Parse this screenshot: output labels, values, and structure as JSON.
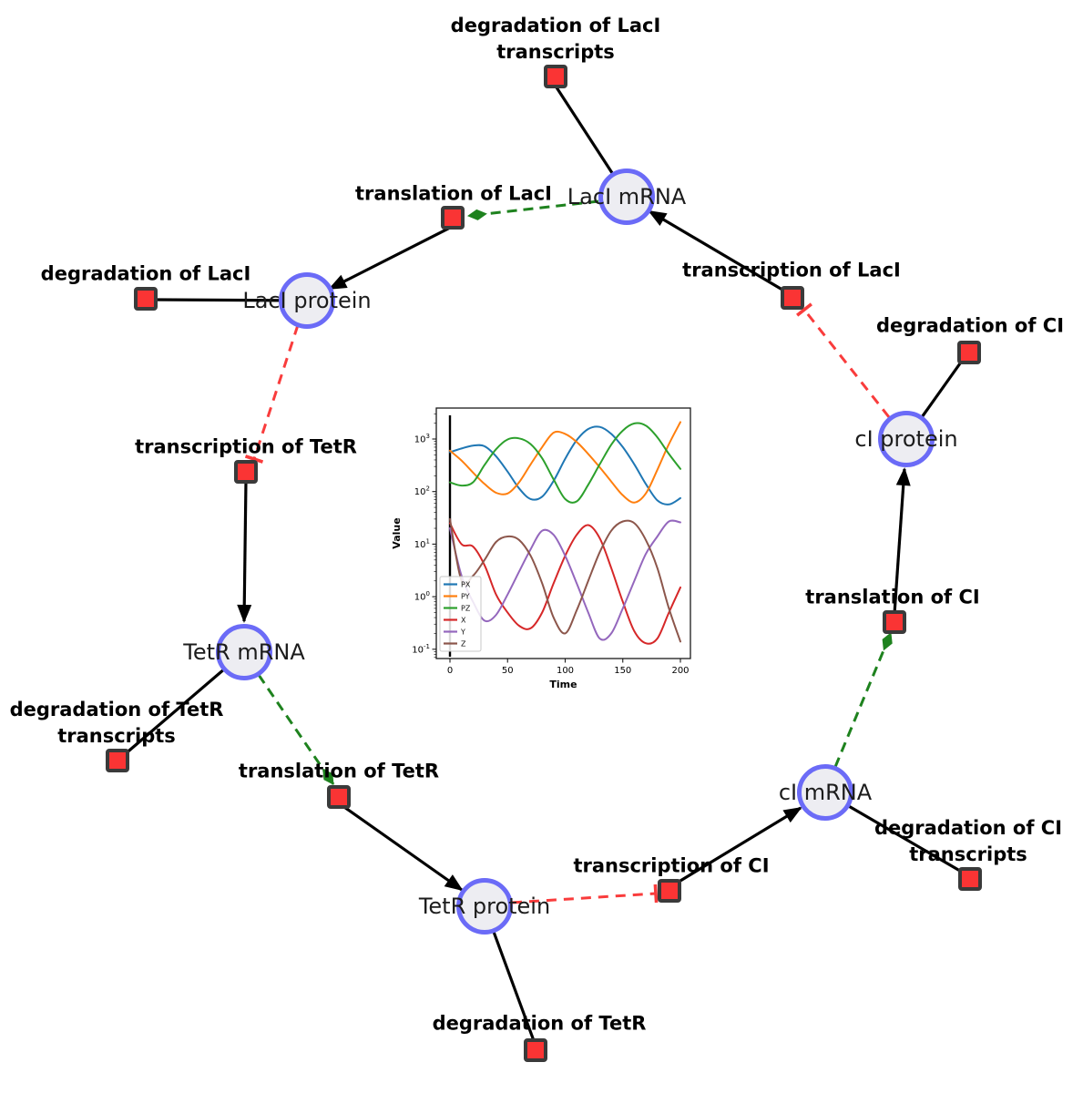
{
  "diagram": {
    "species": {
      "laci_mrna": {
        "label": "LacI mRNA"
      },
      "laci_protein": {
        "label": "LacI protein"
      },
      "tetr_mrna": {
        "label": "TetR mRNA"
      },
      "tetr_protein": {
        "label": "TetR protein"
      },
      "ci_mrna": {
        "label": "cI mRNA"
      },
      "ci_protein": {
        "label": "cI protein"
      }
    },
    "reactions": {
      "deg_laci_tx": {
        "label": "degradation of LacI\ntranscripts"
      },
      "transl_laci": {
        "label": "translation of LacI"
      },
      "tx_laci": {
        "label": "transcription of LacI"
      },
      "deg_laci": {
        "label": "degradation of LacI"
      },
      "deg_ci": {
        "label": "degradation of CI"
      },
      "tx_tetr": {
        "label": "transcription of TetR"
      },
      "deg_tetr_tx": {
        "label": "degradation of TetR\ntranscripts"
      },
      "transl_tetr": {
        "label": "translation of TetR"
      },
      "deg_tetr": {
        "label": "degradation of TetR"
      },
      "tx_ci": {
        "label": "transcription of CI"
      },
      "deg_ci_tx": {
        "label": "degradation of CI\ntranscripts"
      },
      "transl_ci": {
        "label": "translation of CI"
      }
    },
    "colors": {
      "species_fill": "#ededf2",
      "species_stroke": "#6b6bf7",
      "reaction_fill": "#fa3434",
      "reaction_stroke": "#3a3a3a",
      "activation_edge": "#1e821e",
      "inhibition_edge": "#f93c3c",
      "plain_edge": "#000000"
    }
  },
  "chart_data": {
    "type": "line",
    "title": "",
    "xlabel": "Time",
    "ylabel": "Value",
    "x_ticks": [
      0,
      50,
      100,
      150,
      200
    ],
    "y_scale": "log",
    "y_tick_exponents": [
      -1,
      0,
      1,
      2,
      3
    ],
    "xlim": [
      -12,
      209
    ],
    "ylim_log": [
      -1.17,
      3.59
    ],
    "grid": false,
    "legend_position": "lower left",
    "initial_marker_line_x": 0,
    "x": [
      0,
      10,
      20,
      30,
      40,
      50,
      60,
      70,
      80,
      90,
      100,
      110,
      120,
      130,
      140,
      150,
      160,
      170,
      180,
      190,
      200
    ],
    "series": [
      {
        "name": "PX",
        "color": "#1f77b4",
        "values": [
          560,
          660,
          750,
          730,
          470,
          240,
          115,
          72,
          80,
          160,
          420,
          950,
          1550,
          1700,
          1250,
          700,
          330,
          140,
          68,
          57,
          75
        ]
      },
      {
        "name": "PY",
        "color": "#ff7f0e",
        "values": [
          600,
          390,
          230,
          140,
          95,
          92,
          150,
          330,
          700,
          1320,
          1250,
          880,
          520,
          290,
          155,
          85,
          62,
          92,
          260,
          800,
          2100
        ]
      },
      {
        "name": "PZ",
        "color": "#2ca02c",
        "values": [
          150,
          130,
          150,
          320,
          640,
          980,
          1030,
          800,
          430,
          170,
          72,
          65,
          135,
          330,
          780,
          1450,
          1980,
          1800,
          1080,
          520,
          270
        ]
      },
      {
        "name": "X",
        "color": "#d62728",
        "values": [
          25,
          10,
          9,
          4,
          1.1,
          0.5,
          0.28,
          0.25,
          0.5,
          1.8,
          6,
          15,
          23,
          13,
          3.5,
          0.8,
          0.22,
          0.13,
          0.16,
          0.5,
          1.5
        ]
      },
      {
        "name": "Y",
        "color": "#9467bd",
        "values": [
          20,
          2.5,
          0.8,
          0.35,
          0.45,
          1.1,
          3,
          8,
          18,
          15,
          6,
          1.8,
          0.5,
          0.16,
          0.2,
          0.6,
          2,
          6.5,
          14,
          27,
          26
        ]
      },
      {
        "name": "Z",
        "color": "#8c564b",
        "values": [
          30,
          2,
          2.5,
          5,
          11,
          14,
          12,
          6,
          1.8,
          0.4,
          0.2,
          0.55,
          2,
          7,
          18,
          27,
          25,
          12,
          3.5,
          0.6,
          0.14
        ]
      }
    ]
  }
}
